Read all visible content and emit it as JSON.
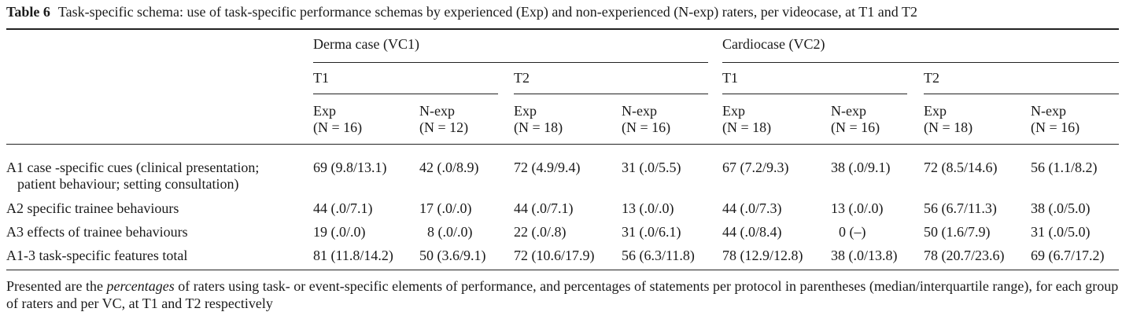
{
  "caption": {
    "label": "Table 6",
    "text": "Task-specific schema: use of task-specific performance schemas by experienced (Exp) and non-experienced (N-exp) raters, per videocase, at T1 and T2"
  },
  "header": {
    "vc1": "Derma case (VC1)",
    "vc2": "Cardiocase (VC2)",
    "t1": "T1",
    "t2": "T2",
    "groups": [
      {
        "name": "Exp",
        "n": "(N = 16)"
      },
      {
        "name": "N-exp",
        "n": "(N = 12)"
      },
      {
        "name": "Exp",
        "n": "(N = 18)"
      },
      {
        "name": "N-exp",
        "n": "(N = 16)"
      },
      {
        "name": "Exp",
        "n": "(N = 18)"
      },
      {
        "name": "N-exp",
        "n": "(N = 16)"
      },
      {
        "name": "Exp",
        "n": "(N = 18)"
      },
      {
        "name": "N-exp",
        "n": "(N = 16)"
      }
    ]
  },
  "rows": [
    {
      "label_line1": "A1 case -specific cues (clinical presentation;",
      "label_line2": "patient behaviour; setting consultation)",
      "values": [
        "69 (9.8/13.1)",
        "42 (.0/8.9)",
        "72 (4.9/9.4)",
        "31 (.0/5.5)",
        "67 (7.2/9.3)",
        "38 (.0/9.1)",
        "72 (8.5/14.6)",
        "56 (1.1/8.2)"
      ]
    },
    {
      "label_line1": "A2 specific trainee behaviours",
      "values": [
        "44 (.0/7.1)",
        "17 (.0/.0)",
        "44 (.0/7.1)",
        "13 (.0/.0)",
        "44 (.0/7.3)",
        "13 (.0/.0)",
        "56 (6.7/11.3)",
        "38 (.0/5.0)"
      ]
    },
    {
      "label_line1": "A3 effects of trainee behaviours",
      "values": [
        "19 (.0/.0)",
        "8 (.0/.0)",
        "22 (.0/.8)",
        "31 (.0/6.1)",
        "44 (.0/8.4)",
        "0 (–)",
        "50 (1.6/7.9)",
        "31 (.0/5.0)"
      ]
    },
    {
      "label_line1": "A1-3 task-specific features total",
      "values": [
        "81 (11.8/14.2)",
        "50 (3.6/9.1)",
        "72 (10.6/17.9)",
        "56 (6.3/11.8)",
        "78 (12.9/12.8)",
        "38 (.0/13.8)",
        "78 (20.7/23.6)",
        "69 (6.7/17.2)"
      ]
    }
  ],
  "footnote": {
    "before": "Presented are the ",
    "emphasis": "percentages",
    "after": " of raters using task- or event-specific elements of performance, and percentages of statements per protocol in parentheses (median/interquartile range), for each group of raters and per VC, at T1 and T2 respectively"
  }
}
